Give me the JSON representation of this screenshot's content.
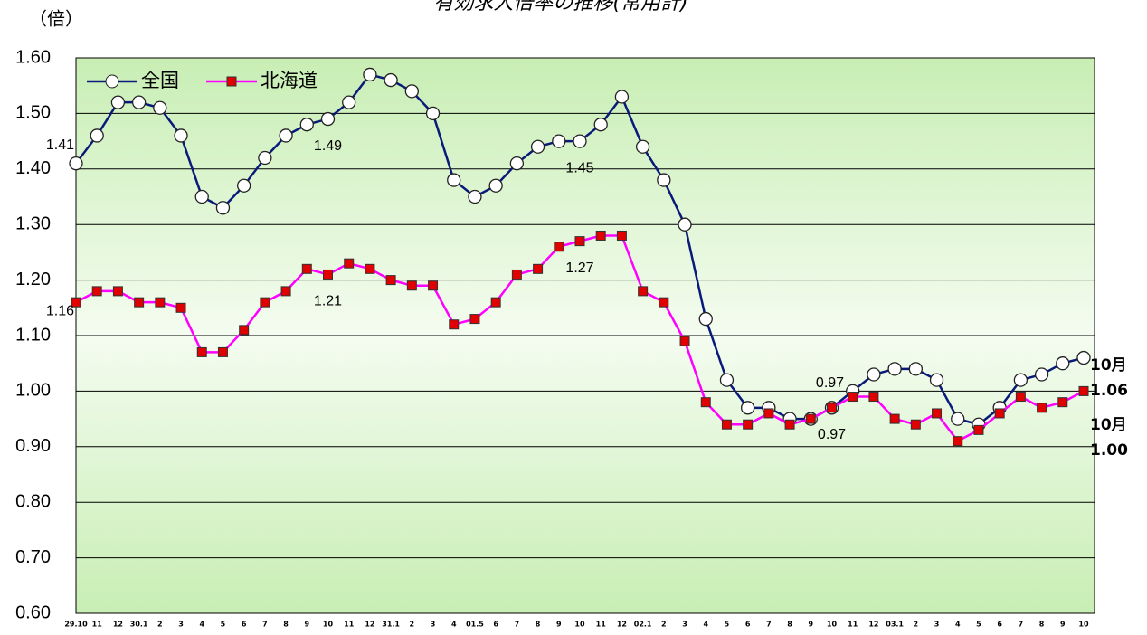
{
  "chart_data": {
    "type": "line",
    "title": "有効求人倍率の推移(常用計)",
    "y_axis_label": "（倍）",
    "end_month_label": "10月",
    "categories": [
      "29.10",
      "11",
      "12",
      "30.1",
      "2",
      "3",
      "4",
      "5",
      "6",
      "7",
      "8",
      "9",
      "10",
      "11",
      "12",
      "31.1",
      "2",
      "3",
      "4",
      "01.5",
      "6",
      "7",
      "8",
      "9",
      "10",
      "11",
      "12",
      "02.1",
      "2",
      "3",
      "4",
      "5",
      "6",
      "7",
      "8",
      "9",
      "10",
      "11",
      "12",
      "03.1",
      "2",
      "3",
      "4",
      "5",
      "6",
      "7",
      "8",
      "9",
      "10"
    ],
    "ylim": [
      0.6,
      1.6
    ],
    "yticks": [
      {
        "value": 0.6,
        "label": "0.60"
      },
      {
        "value": 0.7,
        "label": "0.70"
      },
      {
        "value": 0.8,
        "label": "0.80"
      },
      {
        "value": 0.9,
        "label": "0.90"
      },
      {
        "value": 1.0,
        "label": "1.00"
      },
      {
        "value": 1.1,
        "label": "1.10"
      },
      {
        "value": 1.2,
        "label": "1.20"
      },
      {
        "value": 1.3,
        "label": "1.30"
      },
      {
        "value": 1.4,
        "label": "1.40"
      },
      {
        "value": 1.5,
        "label": "1.50"
      },
      {
        "value": 1.6,
        "label": "1.60"
      }
    ],
    "grid": true,
    "legend": "top-left",
    "series": [
      {
        "name": "全国",
        "color": "#0a1a7a",
        "marker": "circle",
        "values": [
          1.41,
          1.46,
          1.52,
          1.52,
          1.51,
          1.46,
          1.35,
          1.33,
          1.37,
          1.42,
          1.46,
          1.48,
          1.49,
          1.52,
          1.57,
          1.56,
          1.54,
          1.5,
          1.38,
          1.35,
          1.37,
          1.41,
          1.44,
          1.45,
          1.45,
          1.48,
          1.53,
          1.44,
          1.38,
          1.3,
          1.13,
          1.02,
          0.97,
          0.97,
          0.95,
          0.95,
          0.97,
          1.0,
          1.03,
          1.04,
          1.04,
          1.02,
          0.95,
          0.94,
          0.97,
          1.02,
          1.03,
          1.05,
          1.06
        ],
        "value_labels": [
          "1.41",
          null,
          null,
          null,
          null,
          null,
          null,
          null,
          null,
          null,
          null,
          null,
          "1.49",
          null,
          null,
          null,
          null,
          null,
          null,
          null,
          null,
          null,
          null,
          null,
          "1.45",
          null,
          null,
          null,
          null,
          null,
          null,
          null,
          null,
          null,
          null,
          null,
          "0.97",
          null,
          null,
          null,
          null,
          null,
          null,
          null,
          null,
          null,
          null,
          null,
          "1.06"
        ]
      },
      {
        "name": "北海道",
        "color": "#ff00ff",
        "marker_color": "#e00000",
        "marker": "square",
        "values": [
          1.16,
          1.18,
          1.18,
          1.16,
          1.16,
          1.15,
          1.07,
          1.07,
          1.11,
          1.16,
          1.18,
          1.22,
          1.21,
          1.23,
          1.22,
          1.2,
          1.19,
          1.19,
          1.12,
          1.13,
          1.16,
          1.21,
          1.22,
          1.26,
          1.27,
          1.28,
          1.28,
          1.18,
          1.16,
          1.09,
          0.98,
          0.94,
          0.94,
          0.96,
          0.94,
          0.95,
          0.97,
          0.99,
          0.99,
          0.95,
          0.94,
          0.96,
          0.91,
          0.93,
          0.96,
          0.99,
          0.97,
          0.98,
          1.0
        ],
        "value_labels": [
          "1.16",
          null,
          null,
          null,
          null,
          null,
          null,
          null,
          null,
          null,
          null,
          null,
          "1.21",
          null,
          null,
          null,
          null,
          null,
          null,
          null,
          null,
          null,
          null,
          null,
          "1.27",
          null,
          null,
          null,
          null,
          null,
          null,
          null,
          null,
          null,
          null,
          null,
          "0.97",
          null,
          null,
          null,
          null,
          null,
          null,
          null,
          null,
          null,
          null,
          null,
          "1.00"
        ]
      }
    ]
  }
}
